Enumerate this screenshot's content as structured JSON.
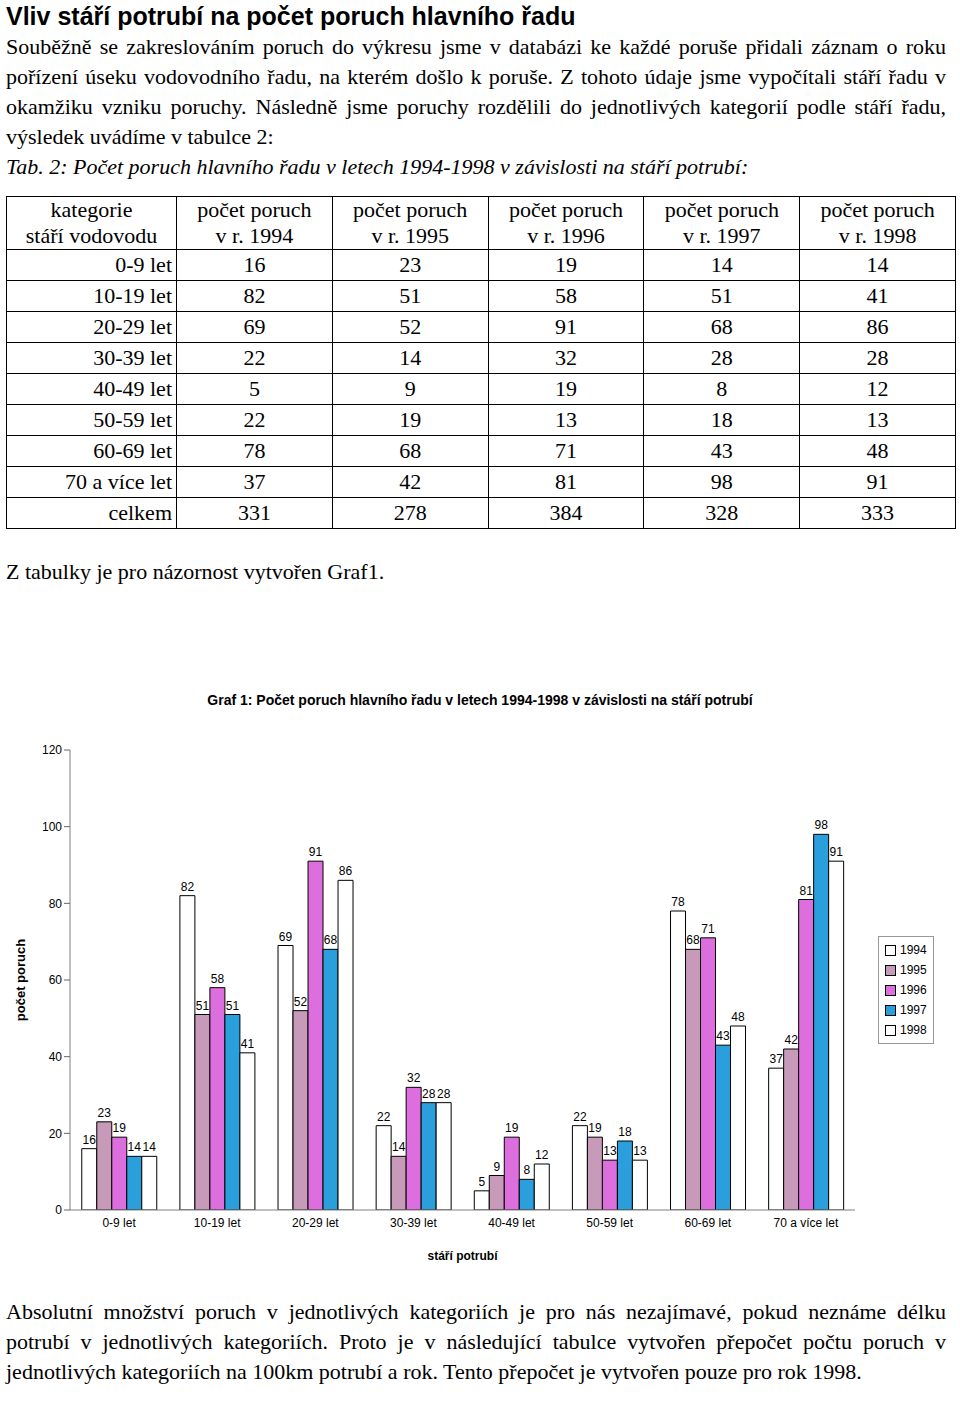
{
  "heading": "Vliv stáří potrubí na počet poruch hlavního řadu",
  "intro": "Souběžně se zakreslováním poruch do výkresu jsme v databázi ke každé poruše přidali záznam o roku pořízení úseku vodovodního řadu, na kterém došlo k poruše. Z tohoto údaje jsme vypočítali stáří řadu v okamžiku vzniku poruchy. Následně jsme poruchy rozdělili do jednotlivých kategorií podle stáří řadu, výsledek uvádíme v tabulce 2:",
  "caption": "Tab. 2: Počet poruch hlavního řadu v letech 1994-1998 v závislosti na stáří potrubí:",
  "table": {
    "header": [
      [
        "kategorie",
        "stáří vodovodu"
      ],
      [
        "počet poruch",
        "v r. 1994"
      ],
      [
        "počet poruch",
        "v r. 1995"
      ],
      [
        "počet poruch",
        "v r. 1996"
      ],
      [
        "počet poruch",
        "v r. 1997"
      ],
      [
        "počet poruch",
        "v r. 1998"
      ]
    ],
    "rows": [
      [
        "0-9 let",
        16,
        23,
        19,
        14,
        14
      ],
      [
        "10-19 let",
        82,
        51,
        58,
        51,
        41
      ],
      [
        "20-29 let",
        69,
        52,
        91,
        68,
        86
      ],
      [
        "30-39 let",
        22,
        14,
        32,
        28,
        28
      ],
      [
        "40-49 let",
        5,
        9,
        19,
        8,
        12
      ],
      [
        "50-59 let",
        22,
        19,
        13,
        18,
        13
      ],
      [
        "60-69 let",
        78,
        68,
        71,
        43,
        48
      ],
      [
        "70 a více let",
        37,
        42,
        81,
        98,
        91
      ],
      [
        "celkem",
        331,
        278,
        384,
        328,
        333
      ]
    ]
  },
  "after_table": "Z tabulky je pro názornost vytvořen Graf1.",
  "chart_data": {
    "type": "bar",
    "title": "Graf 1: Počet poruch hlavního řadu v letech 1994-1998 v závislosti na stáří potrubí",
    "x_label": "stáří potrubí",
    "y_label": "počet poruch",
    "categories": [
      "0-9 let",
      "10-19 let",
      "20-29 let",
      "30-39 let",
      "40-49 let",
      "50-59 let",
      "60-69 let",
      "70 a více let"
    ],
    "series": [
      {
        "name": "1994",
        "color": "#ffffff",
        "values": [
          16,
          82,
          69,
          22,
          5,
          22,
          78,
          37
        ]
      },
      {
        "name": "1995",
        "color": "#c79ab9",
        "values": [
          23,
          51,
          52,
          14,
          9,
          19,
          68,
          42
        ]
      },
      {
        "name": "1996",
        "color": "#dd6edd",
        "values": [
          19,
          58,
          91,
          32,
          19,
          13,
          71,
          81
        ]
      },
      {
        "name": "1997",
        "color": "#2b9fdc",
        "values": [
          14,
          51,
          68,
          28,
          8,
          18,
          43,
          98
        ]
      },
      {
        "name": "1998",
        "color": "#ffffff",
        "values": [
          14,
          41,
          86,
          28,
          12,
          13,
          48,
          91
        ]
      }
    ],
    "ylim": [
      0,
      120
    ],
    "yticks": [
      0,
      20,
      40,
      60,
      80,
      100,
      120
    ],
    "grid": false,
    "legend": "right",
    "data_labels": true
  },
  "closing": "Absolutní množství poruch v jednotlivých kategoriích je pro nás nezajímavé, pokud neznáme délku potrubí v jednotlivých kategoriích. Proto je v následující tabulce vytvořen přepočet počtu poruch v jednotlivých kategoriích na 100km potrubí a rok. Tento přepočet je vytvořen pouze pro rok 1998."
}
